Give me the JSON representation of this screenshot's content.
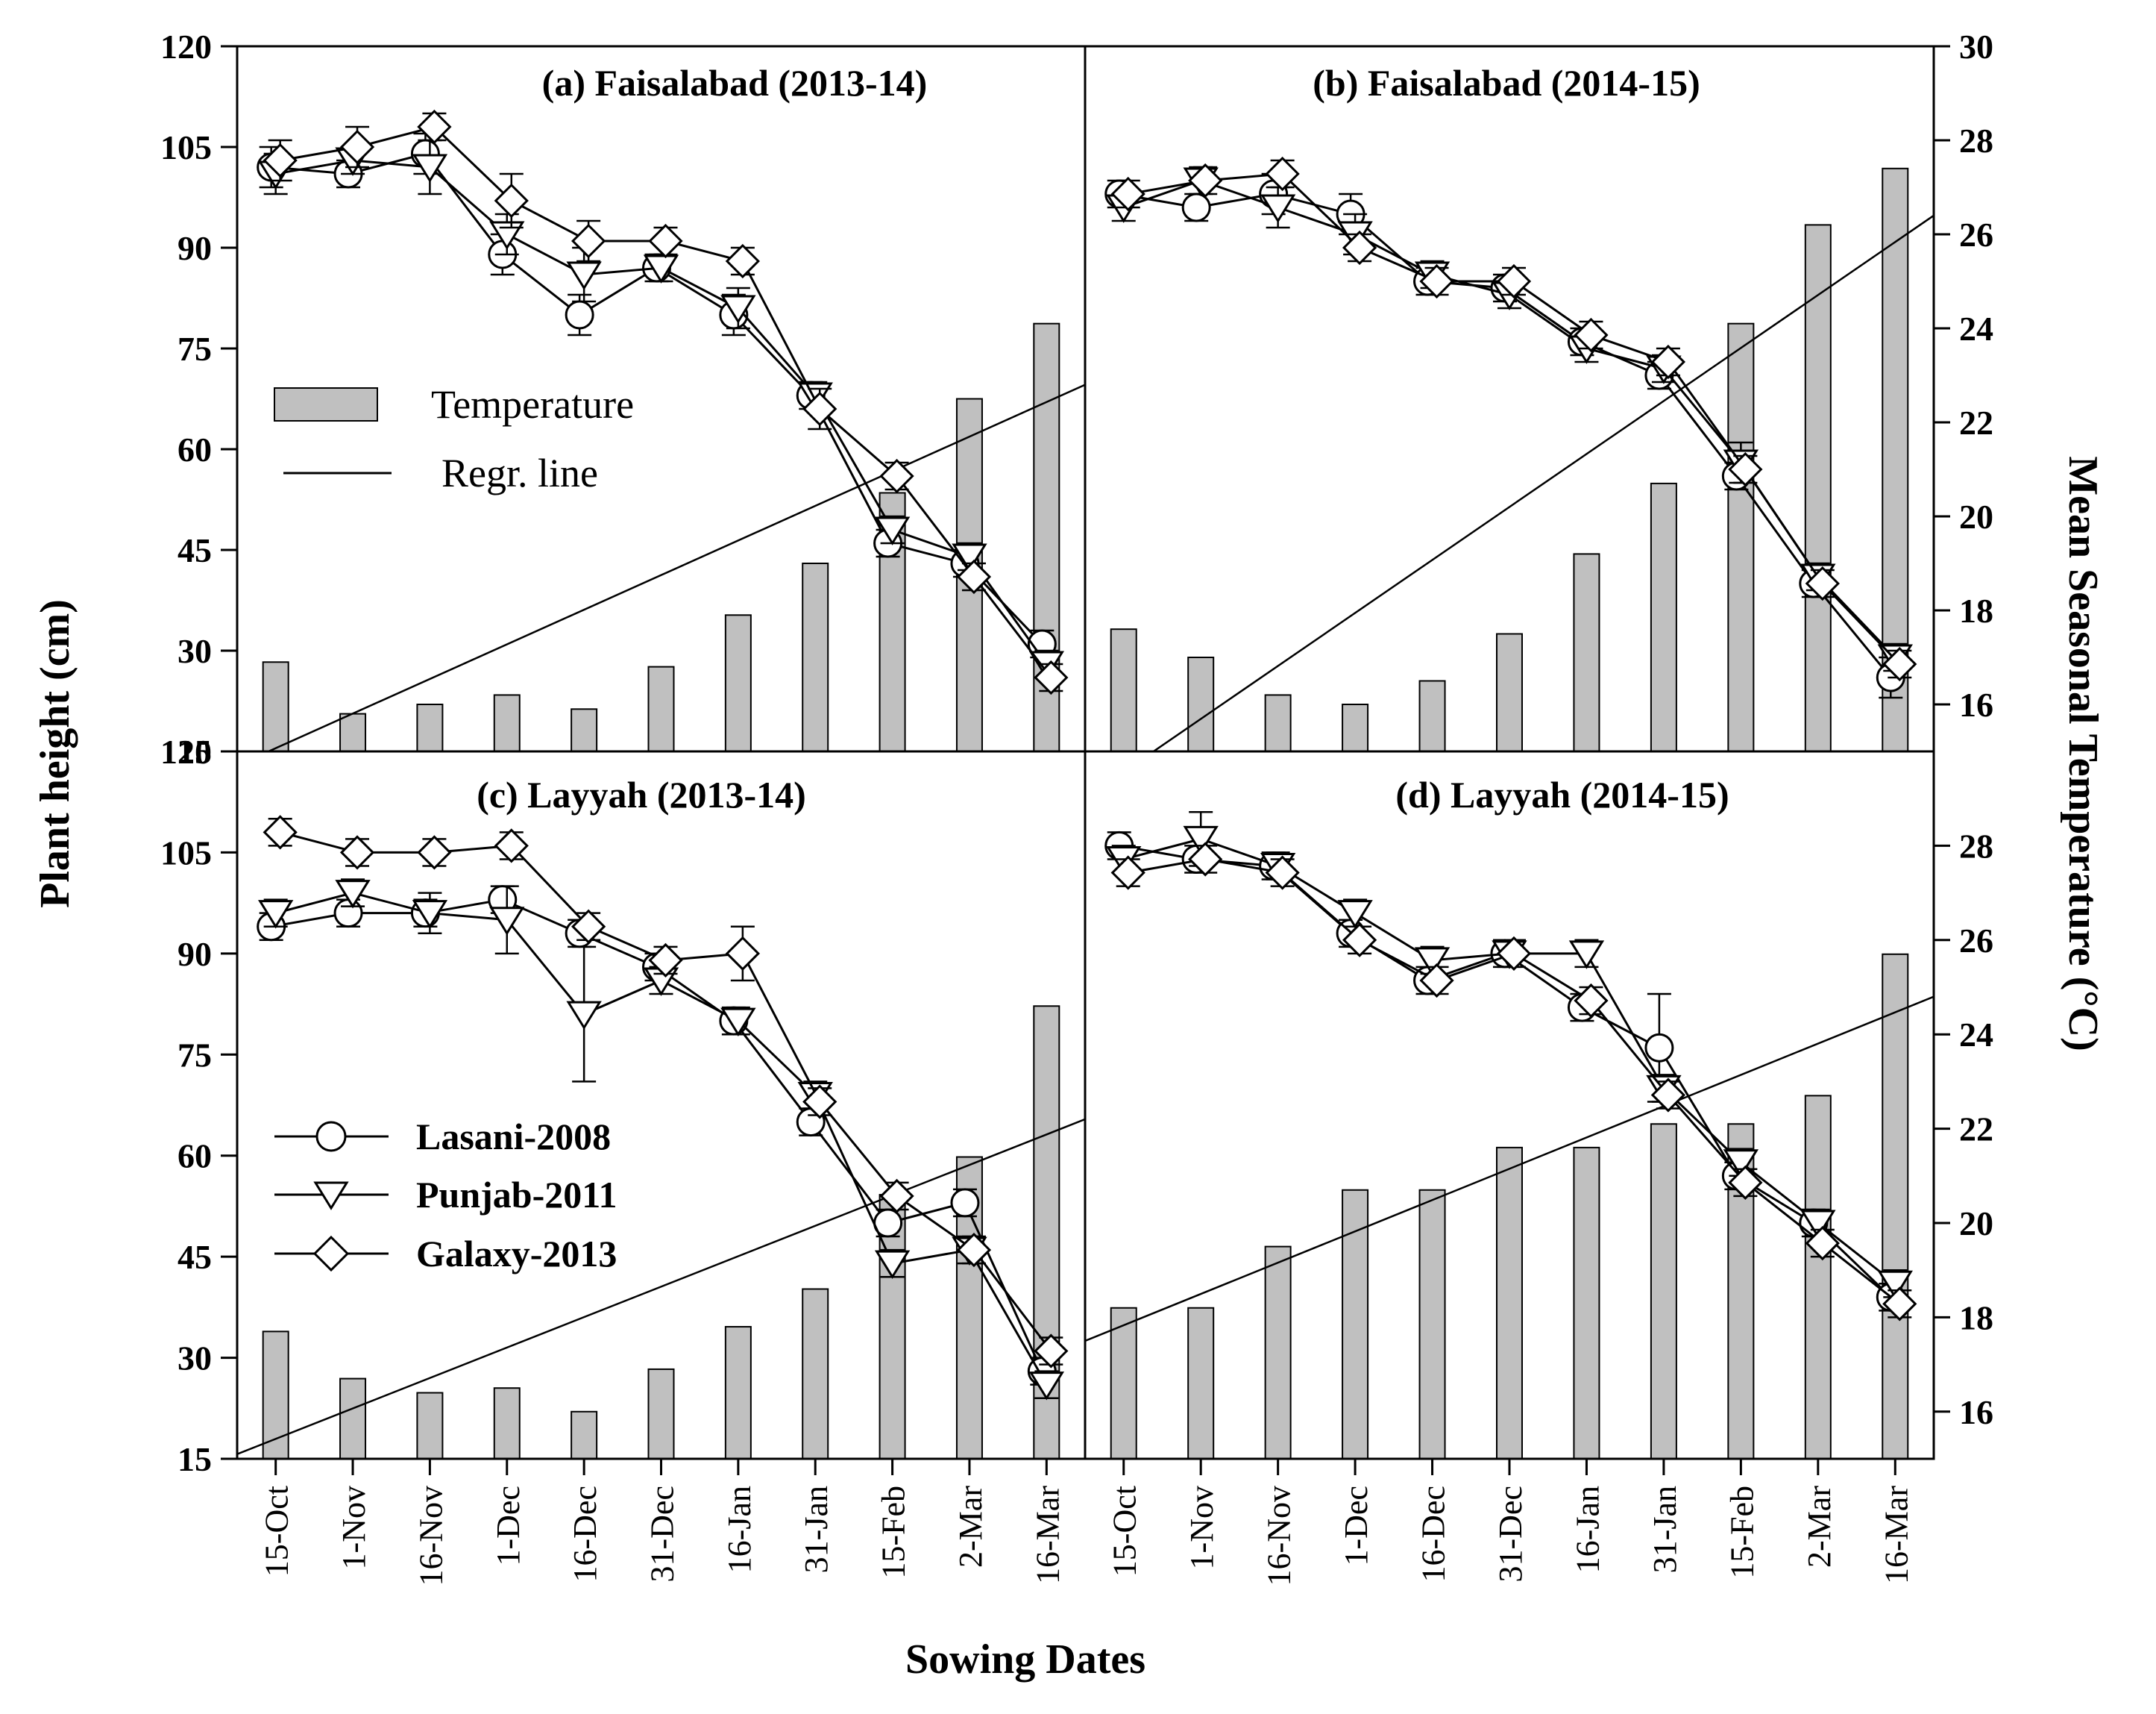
{
  "chart_data": {
    "type": "bar+line",
    "x_label": "Sowing Dates",
    "y_label_left": "Plant height (cm)",
    "y_label_right": "Mean Seasonal Temperature",
    "y_label_right_unit": "(°C)",
    "categories": [
      "15-Oct",
      "1-Nov",
      "16-Nov",
      "1-Dec",
      "16-Dec",
      "31-Dec",
      "16-Jan",
      "31-Jan",
      "15-Feb",
      "2-Mar",
      "16-Mar"
    ],
    "left_axis": {
      "range": [
        15,
        120
      ],
      "ticks": [
        "15",
        "30",
        "45",
        "60",
        "75",
        "90",
        "105",
        "120"
      ]
    },
    "right_axis": {
      "top": {
        "range": [
          15,
          30
        ],
        "ticks": [
          "16",
          "18",
          "20",
          "22",
          "24",
          "26",
          "28",
          "30"
        ]
      },
      "bottom": {
        "range": [
          15,
          30
        ],
        "ticks": [
          "16",
          "18",
          "20",
          "22",
          "24",
          "26",
          "28"
        ]
      }
    },
    "legend_top": {
      "temperature": "Temperature",
      "regression": "Regr. line"
    },
    "cultivars": [
      "Lasani-2008",
      "Punjab-2011",
      "Galaxy-2013"
    ],
    "panels": [
      {
        "title": "(a) Faisalabad (2013-14)",
        "temperature": [
          16.9,
          15.8,
          16.0,
          16.2,
          15.9,
          16.8,
          17.9,
          19.0,
          20.5,
          22.5,
          24.1
        ],
        "regression": [
          14.7,
          22.8
        ],
        "series": [
          {
            "name": "Lasani-2008",
            "values": [
              102,
              101,
              104,
              89,
              80,
              87,
              80,
              68,
              46,
              43,
              31
            ],
            "err": [
              3,
              2,
              3,
              3,
              3,
              2,
              3,
              2,
              2,
              2,
              2
            ]
          },
          {
            "name": "Punjab-2011",
            "values": [
              101,
              103,
              102,
              92,
              86,
              87,
              81,
              68,
              48,
              44,
              28
            ],
            "err": [
              3,
              2,
              4,
              3,
              4,
              2,
              3,
              2,
              2,
              2,
              2
            ]
          },
          {
            "name": "Galaxy-2013",
            "values": [
              103,
              105,
              108,
              97,
              91,
              91,
              88,
              66,
              56,
              41,
              26
            ],
            "err": [
              3,
              3,
              2,
              4,
              3,
              2,
              2,
              3,
              2,
              2,
              2
            ]
          }
        ]
      },
      {
        "title": "(b) Faisalabad (2014-15)",
        "temperature": [
          17.6,
          17.0,
          16.2,
          16.0,
          16.5,
          17.5,
          19.2,
          20.7,
          24.1,
          26.2,
          27.4
        ],
        "regression": [
          14.0,
          26.4
        ],
        "series": [
          {
            "name": "Lasani-2008",
            "values": [
              98,
              96,
              98,
              95,
              85,
              84,
              76,
              71,
              56,
              40,
              26
            ],
            "err": [
              2,
              2,
              3,
              3,
              2,
              2,
              2,
              2,
              2,
              2,
              3
            ]
          },
          {
            "name": "Punjab-2011",
            "values": [
              96,
              100,
              96,
              92,
              86,
              83,
              75,
              72,
              58,
              41,
              29
            ],
            "err": [
              2,
              2,
              3,
              3,
              2,
              2,
              2,
              2,
              3,
              2,
              2
            ]
          },
          {
            "name": "Galaxy-2013",
            "values": [
              98,
              100,
              101,
              90,
              85,
              85,
              77,
              73,
              57,
              40,
              28
            ],
            "err": [
              2,
              2,
              2,
              2,
              2,
              2,
              2,
              2,
              2,
              2,
              2
            ]
          }
        ]
      },
      {
        "title": "(c) Layyah (2013-14)",
        "temperature": [
          17.7,
          16.7,
          16.4,
          16.5,
          16.0,
          16.9,
          17.8,
          18.6,
          20.6,
          21.4,
          24.6
        ],
        "regression": [
          15.1,
          22.2
        ],
        "series": [
          {
            "name": "Lasani-2008",
            "values": [
              94,
              96,
              96,
              98,
              93,
              88,
              80,
              65,
              50,
              53,
              28
            ],
            "err": [
              2,
              2,
              2,
              2,
              2,
              2,
              2,
              2,
              2,
              2,
              2
            ]
          },
          {
            "name": "Punjab-2011",
            "values": [
              96,
              99,
              96,
              95,
              81,
              86,
              80,
              69,
              44,
              46,
              26
            ],
            "err": [
              2,
              2,
              3,
              5,
              10,
              2,
              2,
              2,
              2,
              2,
              2
            ]
          },
          {
            "name": "Galaxy-2013",
            "values": [
              108,
              105,
              105,
              106,
              94,
              89,
              90,
              68,
              54,
              46,
              31
            ],
            "err": [
              2,
              2,
              2,
              2,
              2,
              2,
              4,
              2,
              2,
              2,
              2
            ]
          }
        ]
      },
      {
        "title": "(d) Layyah (2014-15)",
        "temperature": [
          18.2,
          18.2,
          19.5,
          20.7,
          20.7,
          21.6,
          21.6,
          22.1,
          22.1,
          22.7,
          25.7
        ],
        "regression": [
          17.5,
          24.8
        ],
        "series": [
          {
            "name": "Lasani-2008",
            "values": [
              106,
              104,
              103,
              93,
              86,
              90,
              82,
              76,
              57,
              50,
              39
            ],
            "err": [
              2,
              2,
              2,
              2,
              2,
              2,
              2,
              8,
              2,
              2,
              2
            ]
          },
          {
            "name": "Punjab-2011",
            "values": [
              104,
              107,
              103,
              96,
              89,
              90,
              90,
              70,
              59,
              50,
              41
            ],
            "err": [
              2,
              4,
              2,
              2,
              2,
              2,
              2,
              2,
              2,
              2,
              2
            ]
          },
          {
            "name": "Galaxy-2013",
            "values": [
              102,
              104,
              102,
              92,
              86,
              90,
              83,
              69,
              56,
              47,
              38
            ],
            "err": [
              2,
              2,
              2,
              2,
              2,
              2,
              2,
              2,
              2,
              2,
              2
            ]
          }
        ]
      }
    ]
  }
}
